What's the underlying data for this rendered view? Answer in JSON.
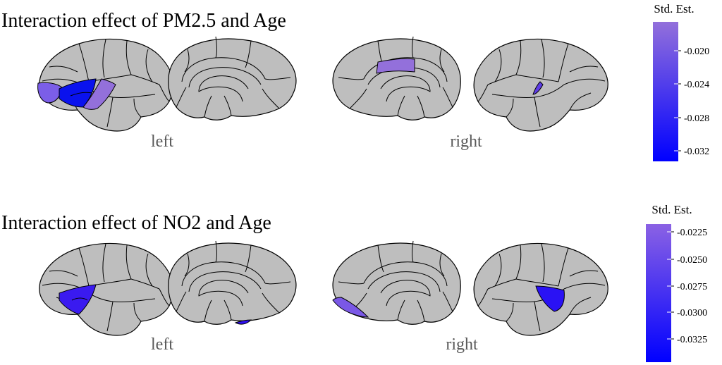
{
  "panels": [
    {
      "title": "Interaction effect of PM2.5 and Age",
      "hemispheres": [
        {
          "label": "left"
        },
        {
          "label": "right"
        }
      ],
      "colorbar": {
        "title": "Std. Est.",
        "top_color": "#9370DB",
        "bottom_color": "#0000FF",
        "ticks": [
          "-0.020",
          "-0.024",
          "-0.028",
          "-0.032"
        ]
      },
      "region_colors": {
        "lat_left_a": "#7b5ee8",
        "lat_left_b": "#0a12ee",
        "lat_left_c": "#9370DB",
        "med_right_a": "#9370DB",
        "lat_right_a": "#5e3de6"
      }
    },
    {
      "title": "Interaction effect of NO2 and Age",
      "hemispheres": [
        {
          "label": "left"
        },
        {
          "label": "right"
        }
      ],
      "colorbar": {
        "title": "Std. Est.",
        "top_color": "#8b62e4",
        "bottom_color": "#0000FF",
        "ticks": [
          "-0.0225",
          "-0.0250",
          "-0.0275",
          "-0.0300",
          "-0.0325"
        ]
      },
      "region_colors": {
        "lat_left_a": "#3a1af0",
        "med_left_a": "#3010f2",
        "med_right_a": "#7a58e6",
        "lat_right_a": "#2a12f4"
      }
    }
  ],
  "background_color": "#bebebe"
}
